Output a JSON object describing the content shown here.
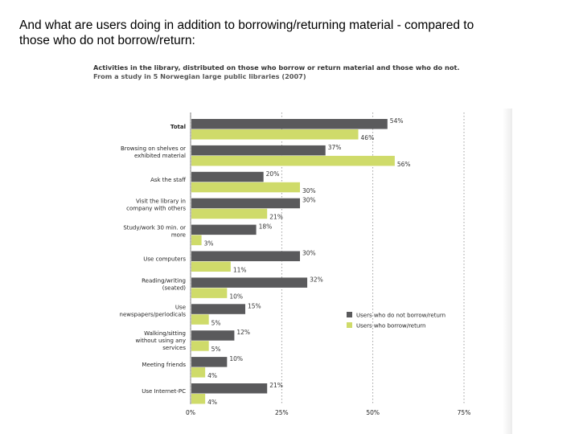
{
  "slide": {
    "title_line1": "And what are users doing in addition to borrowing/returning material - compared to",
    "title_line2": "those who do not borrow/return:"
  },
  "chart_data": {
    "type": "bar",
    "orientation": "horizontal",
    "title": "Activities in the library, distributed on those who borrow or return material and those who do not.",
    "subtitle": "From a study in 5 Norwegian large public libraries (2007)",
    "categories": [
      "Total",
      "Browsing on shelves or exhibited material",
      "Ask the staff",
      "Visit the library in company with others",
      "Study/work 30 min. or more",
      "Use computers",
      "Reading/writing (seated)",
      "Use newspapers/periodicals",
      "Walking/sitting without using any services",
      "Meeting friends",
      "Use Internet-PC"
    ],
    "series": [
      {
        "name": "Users who do not borrow/return",
        "color": "#5a5a5c",
        "values": [
          54,
          37,
          20,
          30,
          18,
          30,
          32,
          15,
          12,
          10,
          21
        ]
      },
      {
        "name": "Users who borrow/return",
        "color": "#cfdb6a",
        "values": [
          46,
          56,
          30,
          21,
          3,
          11,
          10,
          5,
          5,
          4,
          4
        ]
      }
    ],
    "value_suffix": "%",
    "x_ticks": [
      "0%",
      "25%",
      "50%",
      "75%"
    ],
    "xlim": [
      0,
      75
    ],
    "grid": true,
    "legend_position": "right"
  }
}
